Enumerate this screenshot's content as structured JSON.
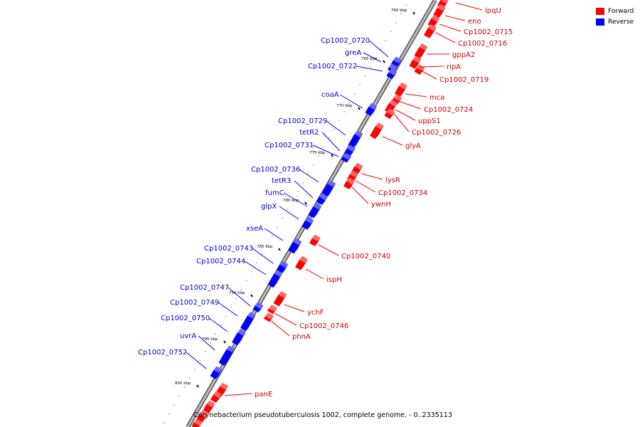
{
  "legend": {
    "forward_label": "Forward",
    "reverse_label": "Reverse",
    "forward_color": "#ff0000",
    "reverse_color": "#0000ff"
  },
  "caption": "Corynebacterium pseudotuberculosis 1002, complete genome. - 0..2335113",
  "ticks": [
    {
      "label": "760 kbp"
    },
    {
      "label": "765 kbp"
    },
    {
      "label": "770 kbp"
    },
    {
      "label": "775 kbp"
    },
    {
      "label": "780 kbp"
    },
    {
      "label": "785 kbp"
    },
    {
      "label": "790 kbp"
    },
    {
      "label": "795 kbp"
    },
    {
      "label": "800 kbp"
    }
  ],
  "forward_genes": [
    {
      "label": "lpqU"
    },
    {
      "label": "eno"
    },
    {
      "label": "Cp1002_0715"
    },
    {
      "label": "Cp1002_0716"
    },
    {
      "label": "gppA2"
    },
    {
      "label": "ripA"
    },
    {
      "label": "Cp1002_0719"
    },
    {
      "label": "mca"
    },
    {
      "label": "Cp1002_0724"
    },
    {
      "label": "uppS1"
    },
    {
      "label": "Cp1002_0726"
    },
    {
      "label": "glyA"
    },
    {
      "label": "lysR"
    },
    {
      "label": "Cp1002_0734"
    },
    {
      "label": "ywnH"
    },
    {
      "label": "Cp1002_0740"
    },
    {
      "label": "ispH"
    },
    {
      "label": "ychF"
    },
    {
      "label": "Cp1002_0746"
    },
    {
      "label": "phnA"
    },
    {
      "label": "panE"
    }
  ],
  "reverse_genes": [
    {
      "label": "Cp1002_0720"
    },
    {
      "label": "greA"
    },
    {
      "label": "Cp1002_0722"
    },
    {
      "label": "coaA"
    },
    {
      "label": "Cp1002_0729"
    },
    {
      "label": "tetR2"
    },
    {
      "label": "Cp1002_0731"
    },
    {
      "label": "Cp1002_0736"
    },
    {
      "label": "tetR3"
    },
    {
      "label": "fumC"
    },
    {
      "label": "glpX"
    },
    {
      "label": "xseA"
    },
    {
      "label": "Cp1002_0743"
    },
    {
      "label": "Cp1002_0744"
    },
    {
      "label": "Cp1002_0747"
    },
    {
      "label": "Cp1002_0749"
    },
    {
      "label": "Cp1002_0750"
    },
    {
      "label": "uvrA"
    },
    {
      "label": "Cp1002_0752"
    }
  ]
}
